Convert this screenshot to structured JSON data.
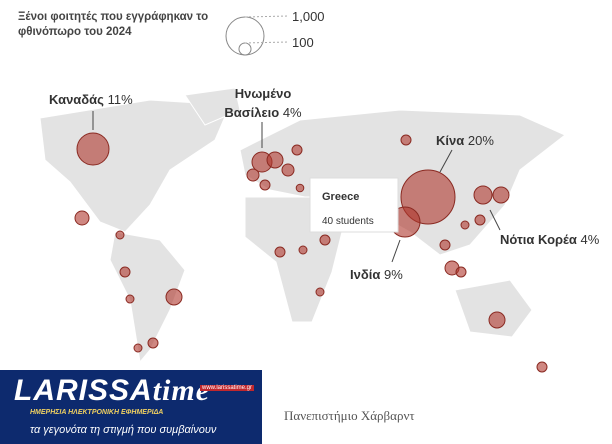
{
  "legend": {
    "title": "Ξένοι φοιτητές που εγγράφηκαν το φθινόπωρο του 2024",
    "sizes": [
      {
        "value": 1000,
        "label": "1,000"
      },
      {
        "value": 100,
        "label": "100"
      }
    ]
  },
  "callouts": [
    {
      "name": "Καναδάς",
      "share": "11%"
    },
    {
      "name": "Ηνωμένο Βασίλειο",
      "share": "4%"
    },
    {
      "name": "Κίνα",
      "share": "20%"
    },
    {
      "name": "Ινδία",
      "share": "9%"
    },
    {
      "name": "Νότια Κορέα",
      "share": "4%"
    }
  ],
  "tooltip": {
    "country": "Greece",
    "students": 40,
    "students_label": "40 students"
  },
  "source": "Πανεπιστήμιο Χάρβαρντ",
  "logo": {
    "name_part1": "LARISSA",
    "name_part2": "time",
    "url": "www.larissatime.gr",
    "tagline": "ΗΜΕΡΗΣΙΑ ΗΛΕΚΤΡΟΝΙΚΗ ΕΦΗΜΕΡΙΔΑ",
    "slogan": "τα γεγονότα τη στιγμή που συμβαίνουν"
  }
}
